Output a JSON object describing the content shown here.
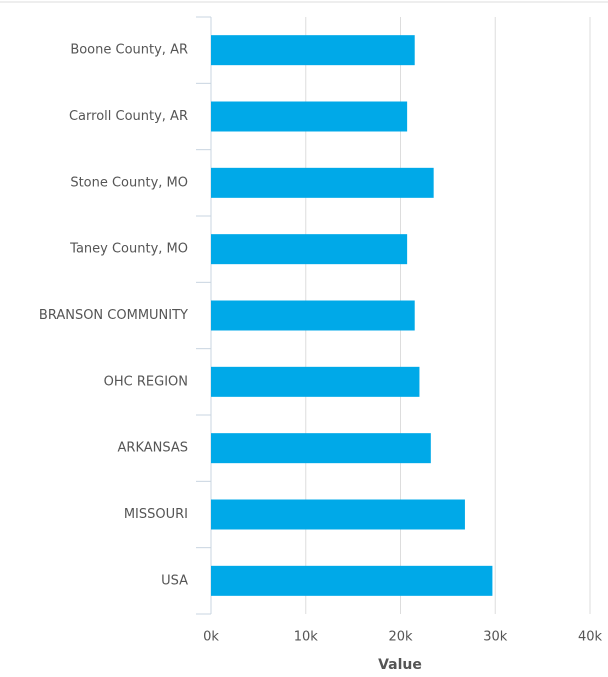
{
  "chart_data": {
    "type": "barh",
    "categories": [
      "Boone County, AR",
      "Carroll County, AR",
      "Stone County, MO",
      "Taney County, MO",
      "BRANSON COMMUNITY",
      "OHC REGION",
      "ARKANSAS",
      "MISSOURI",
      "USA"
    ],
    "values": [
      21500,
      20700,
      23500,
      20700,
      21500,
      22000,
      23200,
      26800,
      29700
    ],
    "color": "#00a9e8",
    "x_label": "Value",
    "xlim": [
      0,
      40000
    ],
    "xticks": [
      {
        "value": 0,
        "label": "0k"
      },
      {
        "value": 10000,
        "label": "10k"
      },
      {
        "value": 20000,
        "label": "20k"
      },
      {
        "value": 30000,
        "label": "30k"
      },
      {
        "value": 40000,
        "label": "40k"
      }
    ],
    "grid": true
  }
}
